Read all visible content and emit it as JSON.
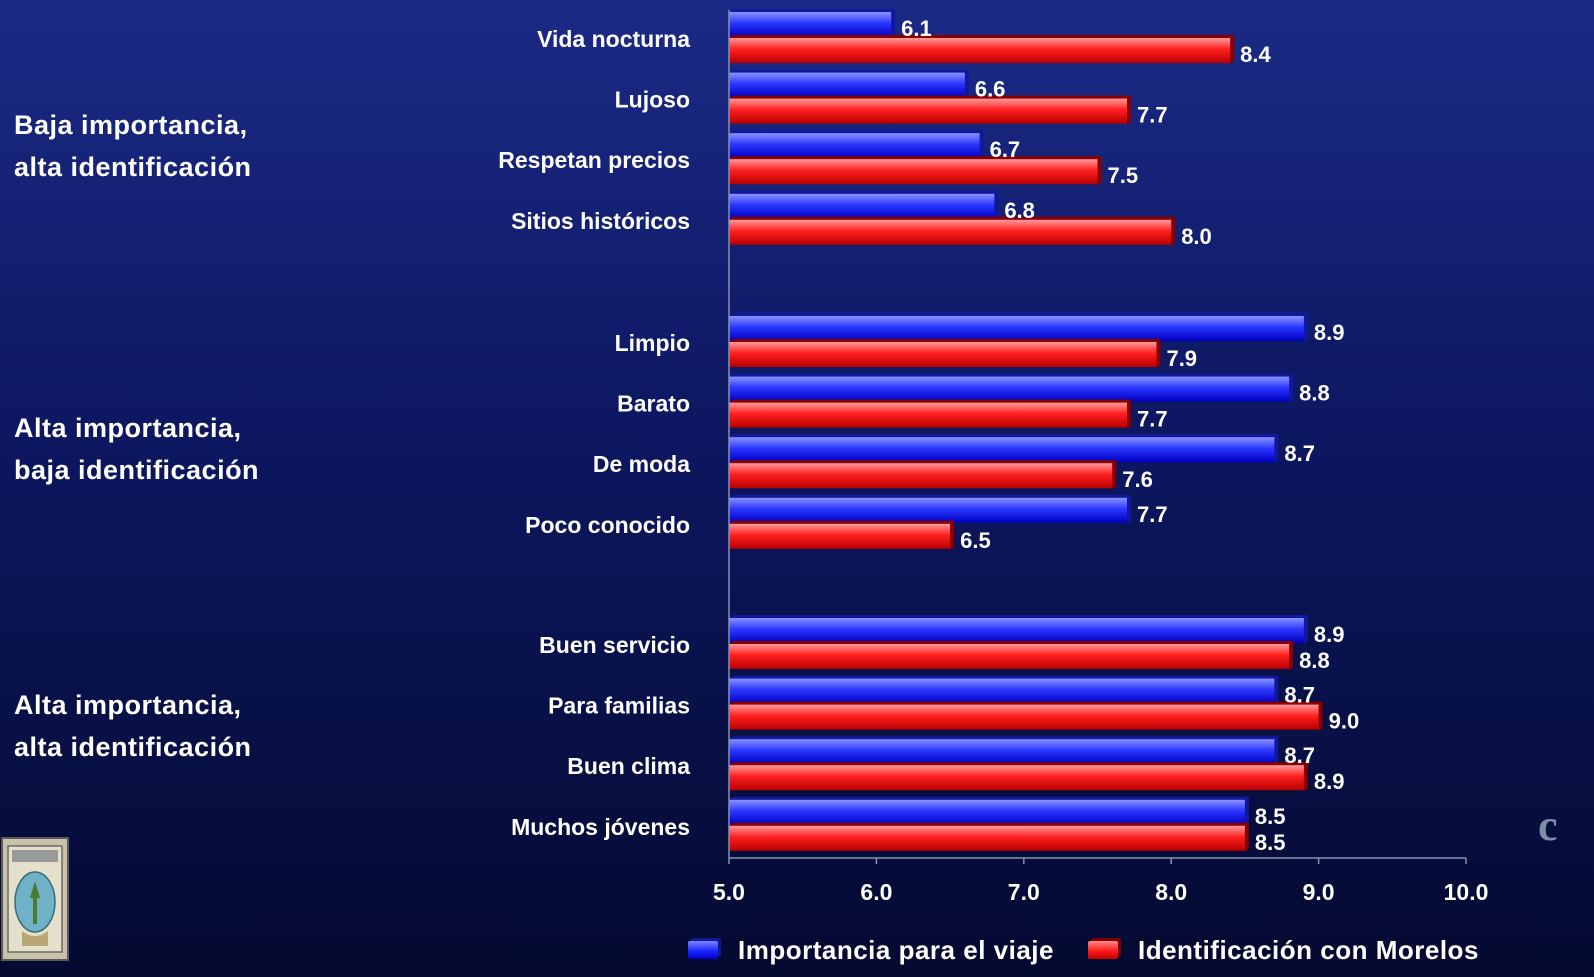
{
  "chart_data": {
    "type": "bar",
    "orientation": "horizontal",
    "groups": [
      {
        "label_lines": [
          "Baja importancia,",
          "alta identificación"
        ],
        "categories": [
          "Vida nocturna",
          "Lujoso",
          "Respetan precios",
          "Sitios históricos"
        ]
      },
      {
        "label_lines": [
          "Alta importancia,",
          "baja identificación"
        ],
        "categories": [
          "Limpio",
          "Barato",
          "De moda",
          "Poco conocido"
        ]
      },
      {
        "label_lines": [
          "Alta importancia,",
          "alta identificación"
        ],
        "categories": [
          "Buen servicio",
          "Para familias",
          "Buen clima",
          "Muchos jóvenes"
        ]
      }
    ],
    "categories": [
      "Vida nocturna",
      "Lujoso",
      "Respetan precios",
      "Sitios históricos",
      "Limpio",
      "Barato",
      "De moda",
      "Poco conocido",
      "Buen servicio",
      "Para familias",
      "Buen clima",
      "Muchos jóvenes"
    ],
    "series": [
      {
        "name": "Importancia para el viaje",
        "color": "#1a26ff",
        "values": [
          6.1,
          6.6,
          6.7,
          6.8,
          8.9,
          8.8,
          8.7,
          7.7,
          8.9,
          8.7,
          8.7,
          8.5
        ],
        "labels": [
          "6.1",
          "6.6",
          "6.7",
          "6.8",
          "8.9",
          "8.8",
          "8.7",
          "7.7",
          "8.9",
          "8.7",
          "8.7",
          "8.5"
        ]
      },
      {
        "name": "Identificación con Morelos",
        "color": "#ff1a1a",
        "values": [
          8.4,
          7.7,
          7.5,
          8.0,
          7.9,
          7.7,
          7.6,
          6.5,
          8.8,
          9.0,
          8.9,
          8.5
        ],
        "labels": [
          "8.4",
          "7.7",
          "7.5",
          "8.0",
          "7.9",
          "7.7",
          "7.6",
          "6.5",
          "8.8",
          "9.0",
          "8.9",
          "8.5"
        ]
      }
    ],
    "xlim": [
      5.0,
      10.0
    ],
    "xticks": [
      5.0,
      6.0,
      7.0,
      8.0,
      9.0,
      10.0
    ],
    "xtick_labels": [
      "5.0",
      "6.0",
      "7.0",
      "8.0",
      "9.0",
      "10.0"
    ],
    "grid": false,
    "legend_position": "bottom"
  },
  "decor": {
    "corner_letter": "c",
    "seal": "municipal-seal"
  }
}
